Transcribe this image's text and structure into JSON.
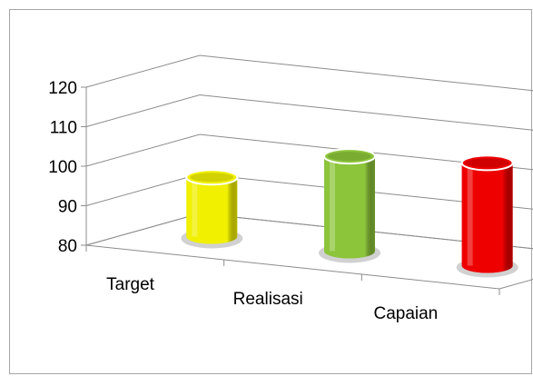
{
  "chart_data": {
    "type": "bar",
    "style": "3d-cylinder",
    "categories": [
      "Target",
      "Realisasi",
      "Capaian"
    ],
    "values": [
      95,
      104,
      106
    ],
    "colors": [
      "#f0f000",
      "#8cc43a",
      "#ee0000"
    ],
    "title": "",
    "xlabel": "",
    "ylabel": "",
    "ylim": [
      80,
      120
    ],
    "yticks": [
      80,
      90,
      100,
      110,
      120
    ],
    "grid": true,
    "legend": "none"
  }
}
